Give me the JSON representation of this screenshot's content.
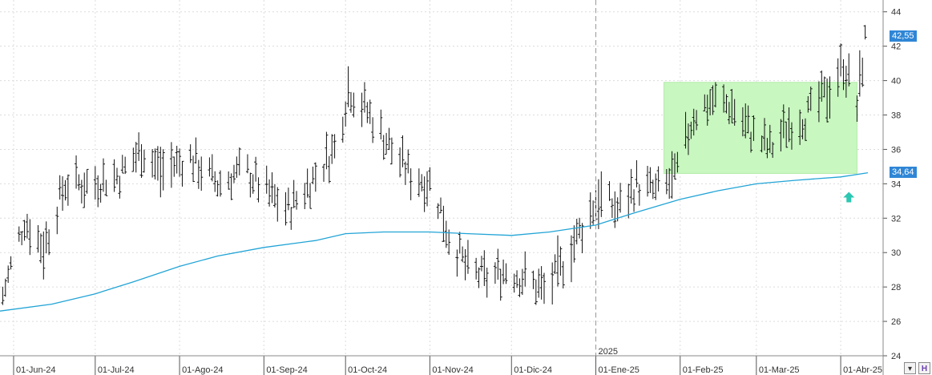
{
  "chart_data": {
    "type": "ohlc",
    "x_labels": [
      "01-Jun-24",
      "01-Jul-24",
      "01-Ago-24",
      "01-Sep-24",
      "01-Oct-24",
      "01-Nov-24",
      "01-Dic-24",
      "01-Ene-25",
      "01-Feb-25",
      "01-Mar-25",
      "01-Abr-25"
    ],
    "year_marker": "2025",
    "y_ticks": [
      "24",
      "26",
      "28",
      "30",
      "32",
      "34",
      "36",
      "38",
      "40",
      "42",
      "44"
    ],
    "ylim": [
      24,
      44.5
    ],
    "last_price": "42,55",
    "ma_value": "34,64",
    "colors": {
      "bars": "#111111",
      "ma": "#22a4d6",
      "zone": "#c8f7c0",
      "arrow": "#2cc7b2",
      "price_box": "#2f86d6"
    },
    "highlight_zone": {
      "from": "2025-01-26",
      "to": "2025-04-07",
      "low": 34.6,
      "high": 39.9
    },
    "moving_average": [
      [
        "2024-05-27",
        26.6
      ],
      [
        "2024-06-15",
        27.0
      ],
      [
        "2024-07-01",
        27.6
      ],
      [
        "2024-07-15",
        28.3
      ],
      [
        "2024-08-01",
        29.2
      ],
      [
        "2024-08-15",
        29.8
      ],
      [
        "2024-09-01",
        30.3
      ],
      [
        "2024-09-20",
        30.7
      ],
      [
        "2024-10-01",
        31.1
      ],
      [
        "2024-10-15",
        31.2
      ],
      [
        "2024-11-01",
        31.2
      ],
      [
        "2024-11-15",
        31.1
      ],
      [
        "2024-12-01",
        31.0
      ],
      [
        "2024-12-15",
        31.2
      ],
      [
        "2025-01-01",
        31.6
      ],
      [
        "2025-01-15",
        32.3
      ],
      [
        "2025-02-01",
        33.1
      ],
      [
        "2025-02-15",
        33.6
      ],
      [
        "2025-03-01",
        34.0
      ],
      [
        "2025-03-15",
        34.2
      ],
      [
        "2025-04-01",
        34.4
      ],
      [
        "2025-04-11",
        34.64
      ]
    ],
    "ohlc_monthly_path": [
      [
        "2024-05-28",
        27.2,
        27.8
      ],
      [
        "2024-06-05",
        31.5,
        32.3
      ],
      [
        "2024-06-12",
        29.5,
        31.0
      ],
      [
        "2024-06-20",
        33.5,
        34.5
      ],
      [
        "2024-06-28",
        33.5,
        34.5
      ],
      [
        "2024-07-10",
        34.0,
        35.0
      ],
      [
        "2024-07-18",
        35.5,
        36.5
      ],
      [
        "2024-07-25",
        34.0,
        35.5
      ],
      [
        "2024-08-05",
        35.0,
        36.0
      ],
      [
        "2024-08-15",
        33.5,
        34.5
      ],
      [
        "2024-08-25",
        34.5,
        35.2
      ],
      [
        "2024-09-02",
        33.0,
        34.0
      ],
      [
        "2024-09-10",
        32.0,
        33.0
      ],
      [
        "2024-09-20",
        34.0,
        35.0
      ],
      [
        "2024-09-28",
        35.5,
        37.0
      ],
      [
        "2024-10-02",
        39.0,
        40.2
      ],
      [
        "2024-10-10",
        37.5,
        38.5
      ],
      [
        "2024-10-18",
        35.5,
        36.5
      ],
      [
        "2024-10-25",
        34.0,
        35.0
      ],
      [
        "2024-11-02",
        33.5,
        34.5
      ],
      [
        "2024-11-08",
        30.5,
        31.5
      ],
      [
        "2024-11-15",
        28.5,
        29.5
      ],
      [
        "2024-11-22",
        28.0,
        29.0
      ],
      [
        "2024-11-29",
        28.5,
        29.5
      ],
      [
        "2024-12-06",
        28.0,
        29.0
      ],
      [
        "2024-12-13",
        27.3,
        28.3
      ],
      [
        "2024-12-18",
        28.0,
        29.5
      ],
      [
        "2025-01-02",
        32.5,
        34.0
      ],
      [
        "2025-01-09",
        32.0,
        33.0
      ],
      [
        "2025-01-16",
        33.5,
        34.5
      ],
      [
        "2025-01-23",
        33.0,
        34.0
      ],
      [
        "2025-01-30",
        33.5,
        35.0
      ],
      [
        "2025-02-06",
        37.5,
        38.5
      ],
      [
        "2025-02-13",
        38.5,
        39.3
      ],
      [
        "2025-02-20",
        38.0,
        39.0
      ],
      [
        "2025-02-27",
        36.5,
        37.5
      ],
      [
        "2025-03-06",
        35.5,
        36.5
      ],
      [
        "2025-03-13",
        37.0,
        38.0
      ],
      [
        "2025-03-20",
        37.5,
        38.5
      ],
      [
        "2025-03-27",
        38.5,
        40.0
      ],
      [
        "2025-04-02",
        40.5,
        41.5
      ],
      [
        "2025-04-07",
        37.5,
        39.5
      ],
      [
        "2025-04-10",
        42.0,
        42.6
      ]
    ]
  }
}
